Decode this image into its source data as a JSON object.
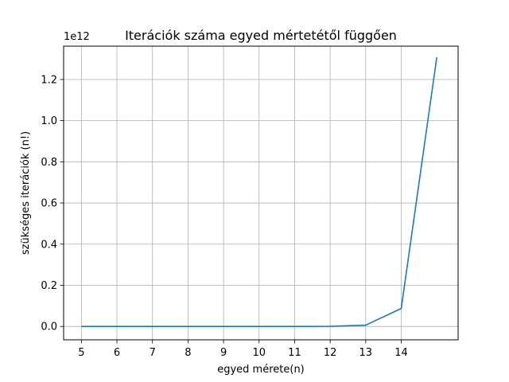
{
  "chart_data": {
    "type": "line",
    "title": "Iterációk száma egyed mértetétől függően",
    "xlabel": "egyed mérete(n)",
    "ylabel": "szükséges iterációk (n!)",
    "y_offset_text": "1e12",
    "y_scale_factor": 1000000000000.0,
    "x_ticks": [
      5,
      6,
      7,
      8,
      9,
      10,
      11,
      12,
      13,
      14
    ],
    "y_ticks": [
      0.0,
      0.2,
      0.4,
      0.6,
      0.8,
      1.0,
      1.2
    ],
    "xlim": [
      4.5,
      15.6
    ],
    "ylim": [
      -0.065,
      1.362
    ],
    "grid": true,
    "series": [
      {
        "color": "#1f77b4",
        "x": [
          5,
          6,
          7,
          8,
          9,
          10,
          11,
          12,
          13,
          14,
          15
        ],
        "y": [
          120,
          720,
          5040,
          40320,
          362880,
          3628800,
          39916800,
          479001600,
          6227020800,
          87178291200,
          1307674368000
        ]
      }
    ]
  }
}
